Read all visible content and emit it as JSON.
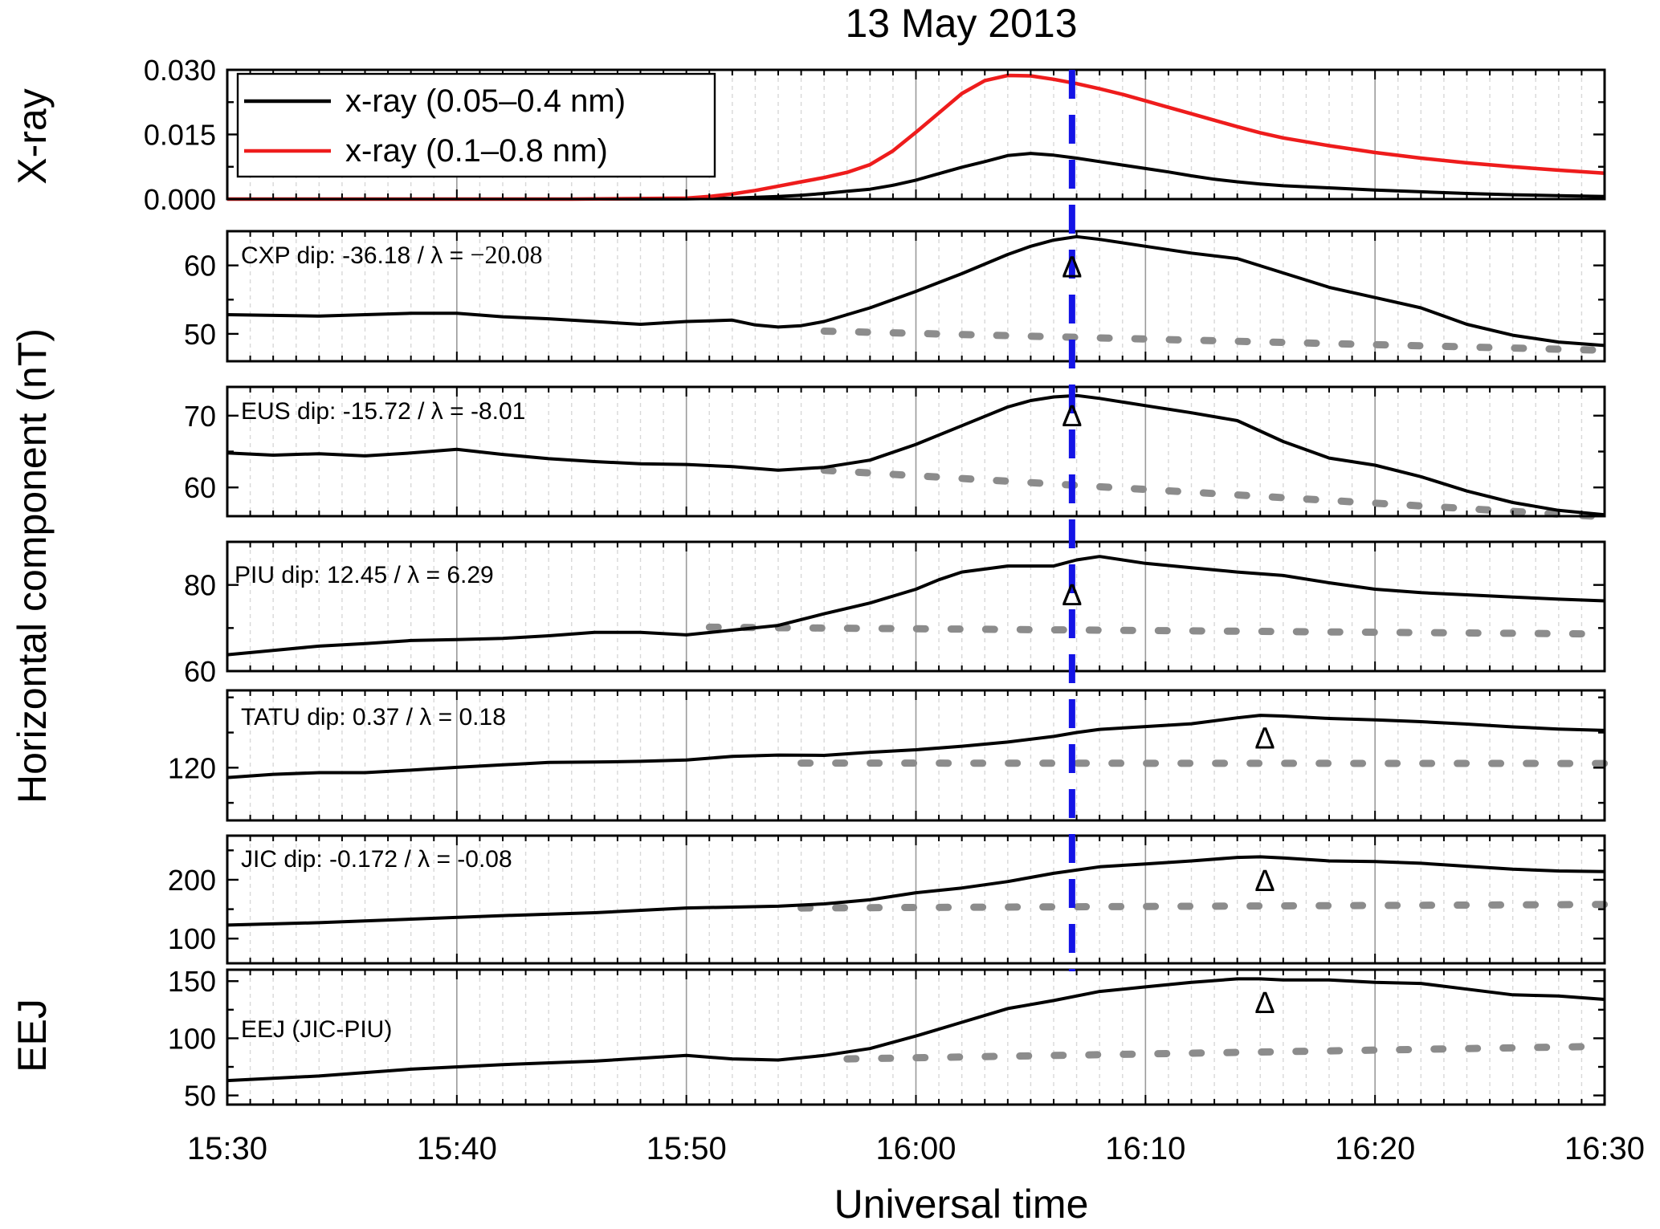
{
  "chart_data": {
    "type": "line",
    "title": "13 May 2013",
    "xlabel": "Universal time",
    "xlim": [
      0,
      60
    ],
    "x_ticks": [
      0,
      10,
      20,
      30,
      40,
      50,
      60
    ],
    "x_tick_labels": [
      "15:30",
      "15:40",
      "15:50",
      "16:00",
      "16:10",
      "16:20",
      "16:30"
    ],
    "group_ylabel": "Horizontal component (nT)",
    "flare_marker_time": 36.8,
    "delta_symbol": "Δ",
    "panels": [
      {
        "id": "xray",
        "ylabel": "X-ray",
        "ylim": [
          0,
          0.03
        ],
        "yticks": [
          0,
          0.015,
          0.03
        ],
        "ytick_labels": [
          "0.000",
          "0.015",
          "0.030"
        ],
        "legend": [
          {
            "label": "x-ray (0.05–0.4 nm)",
            "color": "#000000"
          },
          {
            "label": "x-ray (0.1–0.8 nm)",
            "color": "#ee1c1c"
          }
        ],
        "series": [
          {
            "name": "x-ray (0.05–0.4 nm)",
            "color": "#000000",
            "x": [
              0,
              5,
              10,
              15,
              20,
              22,
              24,
              25,
              26,
              27,
              28,
              29,
              30,
              31,
              32,
              33,
              34,
              35,
              36,
              37,
              38,
              39,
              40,
              41,
              42,
              43,
              44,
              45,
              46,
              48,
              50,
              52,
              54,
              56,
              58,
              60
            ],
            "y": [
              0,
              0,
              0,
              0,
              5e-05,
              0.0002,
              0.0006,
              0.0009,
              0.0013,
              0.0018,
              0.0023,
              0.0032,
              0.0044,
              0.0059,
              0.0074,
              0.0087,
              0.0101,
              0.0106,
              0.0102,
              0.0095,
              0.0087,
              0.0079,
              0.0071,
              0.0063,
              0.0054,
              0.0046,
              0.004,
              0.0035,
              0.0031,
              0.0026,
              0.0021,
              0.0017,
              0.0013,
              0.001,
              0.0008,
              0.0006
            ]
          },
          {
            "name": "x-ray (0.1–0.8 nm)",
            "color": "#ee1c1c",
            "x": [
              0,
              5,
              10,
              15,
              20,
              21,
              22,
              23,
              24,
              25,
              26,
              27,
              28,
              29,
              30,
              31,
              32,
              33,
              34,
              35,
              36,
              37,
              38,
              39,
              40,
              41,
              42,
              43,
              44,
              45,
              46,
              48,
              50,
              52,
              54,
              56,
              58,
              60
            ],
            "y": [
              0,
              0,
              0,
              0,
              0.0002,
              0.0006,
              0.0012,
              0.002,
              0.003,
              0.004,
              0.005,
              0.0062,
              0.008,
              0.0112,
              0.0155,
              0.02,
              0.0245,
              0.0275,
              0.0287,
              0.0286,
              0.0278,
              0.0268,
              0.0256,
              0.0243,
              0.0228,
              0.0213,
              0.0198,
              0.0183,
              0.0168,
              0.0154,
              0.0142,
              0.0124,
              0.0108,
              0.0095,
              0.0084,
              0.0075,
              0.0067,
              0.006
            ]
          }
        ]
      },
      {
        "id": "cxp",
        "station_label": "CXP dip: -36.18 / λ = ",
        "station_label_serif": "−20.08",
        "ylim": [
          46,
          65
        ],
        "yticks": [
          50,
          60
        ],
        "ytick_labels": [
          "50",
          "60"
        ],
        "delta_at": [
          36.8,
          59.9
        ],
        "series": [
          {
            "name": "CXP",
            "color": "#000000",
            "style": "solid",
            "x": [
              0,
              2,
              4,
              6,
              8,
              10,
              12,
              14,
              16,
              18,
              20,
              22,
              23,
              24,
              25,
              26,
              28,
              30,
              32,
              34,
              35,
              36,
              37,
              38,
              40,
              42,
              44,
              46,
              48,
              50,
              52,
              54,
              56,
              58,
              60
            ],
            "y": [
              52.8,
              52.7,
              52.6,
              52.8,
              53,
              53,
              52.5,
              52.2,
              51.8,
              51.4,
              51.8,
              52,
              51.3,
              51.0,
              51.2,
              51.8,
              53.8,
              56.2,
              58.8,
              61.6,
              62.8,
              63.7,
              64.2,
              63.8,
              62.8,
              61.8,
              61,
              58.9,
              56.8,
              55.3,
              53.8,
              51.4,
              49.8,
              48.8,
              48.3
            ]
          },
          {
            "name": "CXP quiet",
            "color": "#8c8c8c",
            "style": "dotted",
            "x": [
              26,
              60
            ],
            "y": [
              50.4,
              47.6
            ]
          }
        ]
      },
      {
        "id": "eus",
        "station_label": "EUS dip: -15.72 / λ = -8.01",
        "ylim": [
          56,
          74
        ],
        "yticks": [
          60,
          70
        ],
        "ytick_labels": [
          "60",
          "70"
        ],
        "delta_at": [
          36.8,
          70.1
        ],
        "series": [
          {
            "name": "EUS",
            "color": "#000000",
            "style": "solid",
            "x": [
              0,
              2,
              4,
              6,
              8,
              10,
              12,
              14,
              16,
              18,
              20,
              22,
              24,
              26,
              28,
              30,
              32,
              34,
              35,
              36,
              37,
              38,
              40,
              42,
              44,
              46,
              48,
              50,
              52,
              54,
              56,
              58,
              60
            ],
            "y": [
              64.8,
              64.5,
              64.7,
              64.4,
              64.8,
              65.3,
              64.6,
              64,
              63.6,
              63.3,
              63.2,
              62.9,
              62.4,
              62.8,
              63.8,
              66.0,
              68.6,
              71.2,
              72.1,
              72.6,
              72.8,
              72.4,
              71.4,
              70.4,
              69.3,
              66.4,
              64.1,
              63.1,
              61.5,
              59.5,
              57.9,
              56.8,
              56.2
            ]
          },
          {
            "name": "EUS quiet",
            "color": "#8c8c8c",
            "style": "dotted",
            "x": [
              26,
              60
            ],
            "y": [
              62.4,
              55.9
            ]
          }
        ]
      },
      {
        "id": "piu",
        "station_label": "PIU dip: 12.45 / λ = 6.29",
        "ylim": [
          60,
          90
        ],
        "yticks": [
          60,
          80
        ],
        "ytick_labels": [
          "60",
          "80"
        ],
        "delta_at": [
          36.8,
          77.9
        ],
        "series": [
          {
            "name": "PIU",
            "color": "#000000",
            "style": "solid",
            "x": [
              0,
              2,
              4,
              6,
              8,
              10,
              12,
              14,
              16,
              18,
              20,
              22,
              24,
              26,
              28,
              30,
              31,
              32,
              34,
              36,
              37,
              38,
              40,
              42,
              44,
              46,
              48,
              50,
              52,
              54,
              56,
              58,
              60
            ],
            "y": [
              63.8,
              64.8,
              65.8,
              66.4,
              67.1,
              67.3,
              67.6,
              68.2,
              69,
              69,
              68.4,
              69.5,
              70.6,
              73.3,
              75.8,
              79,
              81.2,
              83,
              84.4,
              84.4,
              85.8,
              86.6,
              85,
              84,
              83,
              82.2,
              80.5,
              79,
              78.2,
              77.7,
              77.2,
              76.7,
              76.3
            ]
          },
          {
            "name": "PIU quiet",
            "color": "#8c8c8c",
            "style": "dotted",
            "x": [
              21,
              60
            ],
            "y": [
              70.2,
              68.6
            ]
          }
        ]
      },
      {
        "id": "tatu",
        "station_label": "TATU dip: 0.37 / λ = 0.18",
        "ylim": [
          105,
          142
        ],
        "yticks": [
          120
        ],
        "ytick_labels": [
          "120"
        ],
        "delta_at": [
          45.2,
          128.6
        ],
        "series": [
          {
            "name": "TATU",
            "color": "#000000",
            "style": "solid",
            "x": [
              0,
              2,
              4,
              6,
              8,
              10,
              12,
              14,
              16,
              18,
              20,
              22,
              24,
              26,
              28,
              30,
              32,
              34,
              36,
              37,
              38,
              40,
              42,
              44,
              45,
              46,
              48,
              50,
              52,
              54,
              56,
              58,
              60
            ],
            "y": [
              117.2,
              118.1,
              118.6,
              118.6,
              119.3,
              120.1,
              120.8,
              121.5,
              121.6,
              121.8,
              122.2,
              123.2,
              123.6,
              123.5,
              124.4,
              125.1,
              126.1,
              127.3,
              128.9,
              130,
              130.9,
              131.7,
              132.5,
              134.2,
              134.9,
              134.7,
              134,
              133.6,
              133.1,
              132.4,
              131.6,
              131,
              130.6
            ]
          },
          {
            "name": "TATU quiet",
            "color": "#8c8c8c",
            "style": "dotted",
            "x": [
              25,
              60
            ],
            "y": [
              121.3,
              121.2
            ]
          }
        ]
      },
      {
        "id": "jic",
        "station_label": "JIC dip: -0.172 / λ = -0.08",
        "ylim": [
          58,
          275
        ],
        "yticks": [
          100,
          200
        ],
        "ytick_labels": [
          "100",
          "200"
        ],
        "delta_at": [
          45.2,
          200
        ],
        "series": [
          {
            "name": "JIC",
            "color": "#000000",
            "style": "solid",
            "x": [
              0,
              4,
              8,
              12,
              16,
              20,
              24,
              26,
              28,
              30,
              32,
              34,
              36,
              38,
              40,
              42,
              44,
              45,
              46,
              48,
              50,
              52,
              54,
              56,
              58,
              60
            ],
            "y": [
              123,
              127,
              133,
              139,
              144,
              152,
              155,
              159,
              166,
              178,
              186,
              197,
              211,
              222,
              227,
              232,
              238,
              239,
              237,
              232,
              231,
              228,
              223,
              218,
              215,
              214
            ]
          },
          {
            "name": "JIC quiet",
            "color": "#8c8c8c",
            "style": "dotted",
            "x": [
              25,
              60
            ],
            "y": [
              152,
              158
            ]
          }
        ]
      },
      {
        "id": "eej",
        "ylabel": "EEJ",
        "station_label": "EEJ (JIC-PIU)",
        "ylim": [
          42,
          160
        ],
        "yticks": [
          50,
          100,
          150
        ],
        "ytick_labels": [
          "50",
          "100",
          "150"
        ],
        "delta_at": [
          45.2,
          132
        ],
        "series": [
          {
            "name": "EEJ",
            "color": "#000000",
            "style": "solid",
            "x": [
              0,
              4,
              8,
              12,
              16,
              20,
              22,
              24,
              26,
              28,
              30,
              32,
              34,
              36,
              38,
              40,
              42,
              44,
              45,
              46,
              48,
              50,
              52,
              54,
              56,
              58,
              60
            ],
            "y": [
              63,
              67,
              73,
              77,
              80,
              85,
              82,
              81,
              85,
              91,
              102,
              114,
              126,
              133,
              141,
              145,
              149,
              152,
              152,
              151,
              151,
              149,
              148,
              143,
              138,
              137,
              134
            ]
          },
          {
            "name": "EEJ quiet",
            "color": "#8c8c8c",
            "style": "dotted",
            "x": [
              27,
              60
            ],
            "y": [
              82,
              93
            ]
          }
        ]
      }
    ]
  }
}
